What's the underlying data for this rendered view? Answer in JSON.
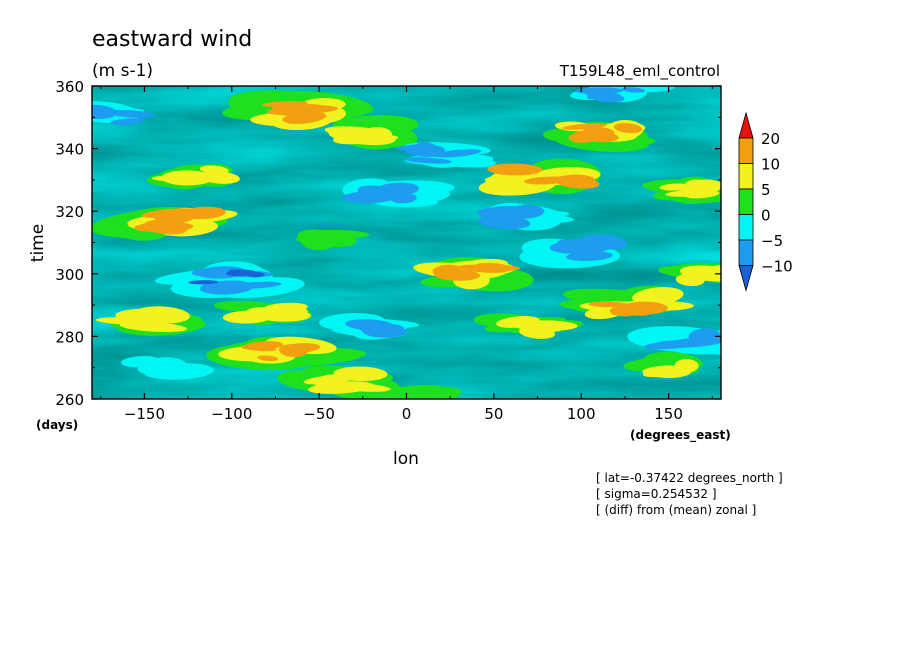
{
  "chart_data": {
    "type": "heatmap",
    "title": "eastward wind",
    "units": "(m s-1)",
    "run_label": "T159L48_eml_control",
    "xlabel": "lon",
    "xunits": "(degrees_east)",
    "ylabel": "time",
    "yunits": "(days)",
    "xlim": [
      -180,
      180
    ],
    "ylim": [
      260,
      360
    ],
    "xticks": [
      -150,
      -100,
      -50,
      0,
      50,
      100,
      150
    ],
    "yticks": [
      260,
      280,
      300,
      320,
      340,
      360
    ],
    "colorbar": {
      "levels": [
        -10,
        -5,
        0,
        5,
        10,
        20
      ],
      "labels": [
        "20",
        "10",
        "5",
        "0",
        "-5",
        "-10"
      ],
      "colors": [
        "#1a62d6",
        "#1e9cf0",
        "#00f5f5",
        "#1fe01f",
        "#f2f21f",
        "#f2a00f",
        "#e8130f"
      ],
      "extend": "both"
    },
    "annotations": [
      "[ lat=-0.37422 degrees_north ]",
      "[ sigma=0.254532 ]",
      "[ (diff) from (mean) zonal ]"
    ],
    "wind_blobs": [
      {
        "lon": -60,
        "time": 352,
        "value": 13
      },
      {
        "lon": -20,
        "time": 345,
        "value": 9
      },
      {
        "lon": 110,
        "time": 345,
        "value": 11
      },
      {
        "lon": -120,
        "time": 332,
        "value": 6
      },
      {
        "lon": 80,
        "time": 331,
        "value": 12
      },
      {
        "lon": 160,
        "time": 326,
        "value": 6
      },
      {
        "lon": -135,
        "time": 317,
        "value": 14
      },
      {
        "lon": -45,
        "time": 312,
        "value": 4
      },
      {
        "lon": 40,
        "time": 300,
        "value": 11
      },
      {
        "lon": 175,
        "time": 300,
        "value": 6
      },
      {
        "lon": -150,
        "time": 285,
        "value": 8
      },
      {
        "lon": -80,
        "time": 288,
        "value": 5
      },
      {
        "lon": 130,
        "time": 290,
        "value": 12
      },
      {
        "lon": 70,
        "time": 283,
        "value": 7
      },
      {
        "lon": -70,
        "time": 275,
        "value": 11
      },
      {
        "lon": -40,
        "time": 266,
        "value": 9
      },
      {
        "lon": 10,
        "time": 262,
        "value": 3
      },
      {
        "lon": 150,
        "time": 270,
        "value": 5
      },
      {
        "lon": -10,
        "time": 325,
        "value": -8
      },
      {
        "lon": 100,
        "time": 308,
        "value": -9
      },
      {
        "lon": -100,
        "time": 298,
        "value": -10
      },
      {
        "lon": 20,
        "time": 338,
        "value": -7
      },
      {
        "lon": -170,
        "time": 350,
        "value": -6
      },
      {
        "lon": 160,
        "time": 278,
        "value": -9
      },
      {
        "lon": -20,
        "time": 283,
        "value": -6
      },
      {
        "lon": 60,
        "time": 318,
        "value": -7
      },
      {
        "lon": -140,
        "time": 270,
        "value": -5
      },
      {
        "lon": 120,
        "time": 358,
        "value": -6
      }
    ]
  }
}
